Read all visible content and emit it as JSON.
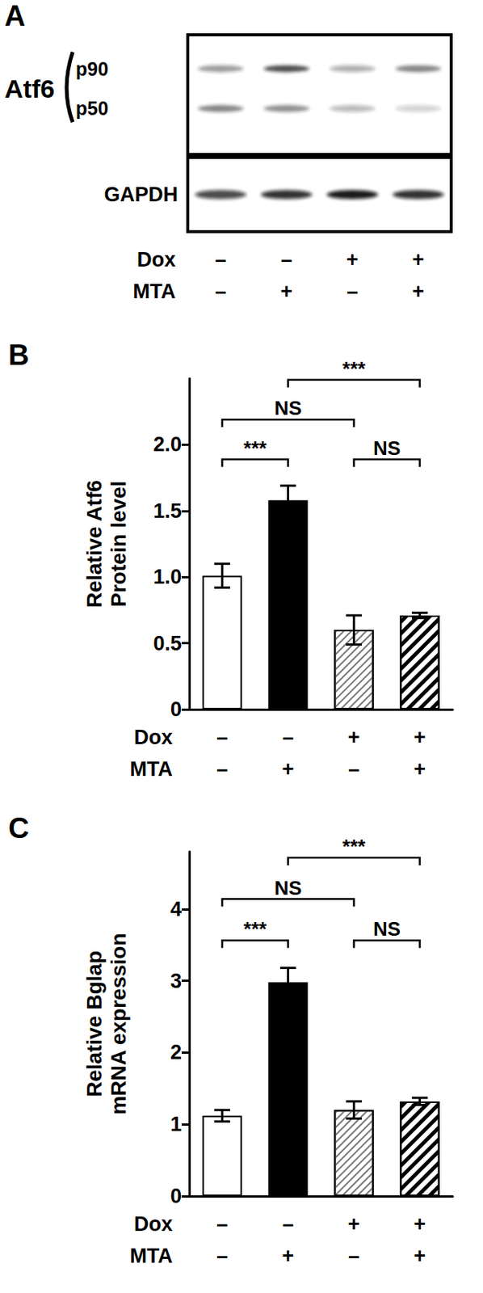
{
  "blot": {
    "panel": "A",
    "protein": "Atf6",
    "bands": [
      {
        "label": "p90",
        "intensity": [
          0.45,
          0.8,
          0.35,
          0.55
        ]
      },
      {
        "label": "p50",
        "intensity": [
          0.55,
          0.5,
          0.3,
          0.2
        ]
      }
    ],
    "loading_control": {
      "label": "GAPDH",
      "intensity": [
        0.75,
        0.85,
        0.95,
        0.85
      ]
    },
    "row_labels": [
      "Dox",
      "MTA"
    ],
    "lanes": [
      "–\n–",
      "–\n+",
      "+\n–",
      "+\n+"
    ]
  },
  "chart_data": [
    {
      "type": "bar",
      "title": "B",
      "ylabel": "Relative Atf6\nProtein level",
      "categories": [
        "–\n–",
        "–\n+",
        "+\n–",
        "+\n+"
      ],
      "row_labels": [
        "Dox",
        "MTA"
      ],
      "values": [
        1.01,
        1.58,
        0.6,
        0.71
      ],
      "errors": [
        0.09,
        0.11,
        0.11,
        0.02
      ],
      "colors": [
        "#ffffff",
        "#000000",
        "#ffffff",
        "#ffffff"
      ],
      "ylim": [
        0,
        2.5
      ],
      "yticks": [
        0,
        0.5,
        {
          "value": 1,
          "label": "1.0"
        },
        1.5,
        {
          "value": 2,
          "label": "2.0"
        }
      ],
      "grid": false,
      "annotations": [
        {
          "from": 0,
          "to": 1,
          "label": "***"
        },
        {
          "from": 2,
          "to": 3,
          "label": "NS"
        },
        {
          "from": 0,
          "to": 2,
          "label": "NS"
        },
        {
          "from": 1,
          "to": 3,
          "label": "***"
        }
      ]
    },
    {
      "type": "bar",
      "title": "C",
      "ylabel": "Relative Bglap\nmRNA expression",
      "categories": [
        "–\n–",
        "–\n+",
        "+\n–",
        "+\n+"
      ],
      "row_labels": [
        "Dox",
        "MTA"
      ],
      "values": [
        1.12,
        2.98,
        1.2,
        1.32
      ],
      "errors": [
        0.08,
        0.2,
        0.12,
        0.05
      ],
      "colors": [
        "#ffffff",
        "#000000",
        "#ffffff",
        "#ffffff"
      ],
      "ylim": [
        0,
        4.8
      ],
      "yticks": [
        0,
        1,
        2,
        3,
        4
      ],
      "grid": false,
      "annotations": [
        {
          "from": 0,
          "to": 1,
          "label": "***"
        },
        {
          "from": 2,
          "to": 3,
          "label": "NS"
        },
        {
          "from": 0,
          "to": 2,
          "label": "NS"
        },
        {
          "from": 1,
          "to": 3,
          "label": "***"
        }
      ]
    }
  ]
}
